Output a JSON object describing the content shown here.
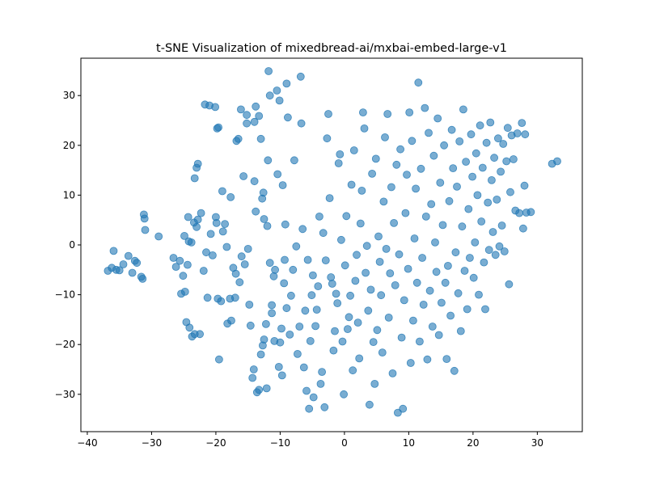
{
  "chart_data": {
    "type": "scatter",
    "title": "t-SNE Visualization of mixedbread-ai/mxbai-embed-large-v1",
    "xlabel": "",
    "ylabel": "",
    "xlim": [
      -41,
      37
    ],
    "ylim": [
      -37.5,
      37.5
    ],
    "xticks": [
      -40,
      -30,
      -20,
      -10,
      0,
      10,
      20,
      30
    ],
    "yticks": [
      -30,
      -20,
      -10,
      0,
      10,
      20,
      30
    ],
    "grid": false,
    "marker_color": "#1f77b4",
    "marker_alpha": 0.6,
    "points": [
      [
        -36.8,
        -5.2
      ],
      [
        -36.2,
        -4.6
      ],
      [
        -35.9,
        -1.2
      ],
      [
        -35.5,
        -5.0
      ],
      [
        -35.0,
        -5.1
      ],
      [
        -34.4,
        -3.9
      ],
      [
        -33.6,
        -2.2
      ],
      [
        -33.0,
        -5.6
      ],
      [
        -32.6,
        -3.2
      ],
      [
        -32.3,
        -3.6
      ],
      [
        -31.6,
        -6.4
      ],
      [
        -31.4,
        -6.8
      ],
      [
        -31.2,
        6.1
      ],
      [
        -31.1,
        5.3
      ],
      [
        -31.0,
        3.0
      ],
      [
        -28.9,
        1.7
      ],
      [
        -26.6,
        -2.6
      ],
      [
        -26.2,
        -4.4
      ],
      [
        -25.6,
        -3.2
      ],
      [
        -25.4,
        -9.8
      ],
      [
        -25.1,
        -6.2
      ],
      [
        -24.9,
        1.8
      ],
      [
        -24.8,
        -9.4
      ],
      [
        -24.4,
        -4.0
      ],
      [
        -24.2,
        0.7
      ],
      [
        -23.8,
        0.5
      ],
      [
        -24.6,
        -15.5
      ],
      [
        -24.1,
        -16.6
      ],
      [
        -23.7,
        -18.4
      ],
      [
        -23.3,
        -17.9
      ],
      [
        -22.5,
        -17.9
      ],
      [
        -24.3,
        5.6
      ],
      [
        -23.4,
        4.5
      ],
      [
        -23.0,
        3.6
      ],
      [
        -22.8,
        5.1
      ],
      [
        -22.3,
        6.4
      ],
      [
        -21.9,
        -5.2
      ],
      [
        -21.5,
        -1.5
      ],
      [
        -21.3,
        -10.6
      ],
      [
        -20.8,
        2.2
      ],
      [
        -20.5,
        -2.1
      ],
      [
        -19.9,
        4.4
      ],
      [
        -19.7,
        -10.8
      ],
      [
        -19.5,
        -23.0
      ],
      [
        -19.2,
        -11.3
      ],
      [
        -23.0,
        15.5
      ],
      [
        -22.8,
        16.3
      ],
      [
        -23.3,
        13.4
      ],
      [
        -21.7,
        28.2
      ],
      [
        -21.0,
        28.0
      ],
      [
        -20.1,
        27.7
      ],
      [
        -19.6,
        23.6
      ],
      [
        -19.8,
        23.4
      ],
      [
        -20.0,
        5.6
      ],
      [
        -19.0,
        10.8
      ],
      [
        -18.6,
        4.2
      ],
      [
        -18.9,
        2.7
      ],
      [
        -18.3,
        -0.4
      ],
      [
        -17.7,
        9.6
      ],
      [
        -17.8,
        -10.8
      ],
      [
        -17.3,
        -4.6
      ],
      [
        -17.0,
        -10.6
      ],
      [
        -16.9,
        -5.8
      ],
      [
        -16.8,
        20.9
      ],
      [
        -16.5,
        21.3
      ],
      [
        -16.1,
        27.2
      ],
      [
        -16.3,
        -7.5
      ],
      [
        -18.2,
        -15.8
      ],
      [
        -17.6,
        -15.2
      ],
      [
        -16.0,
        -2.3
      ],
      [
        -15.7,
        13.8
      ],
      [
        -15.5,
        -3.9
      ],
      [
        -15.2,
        26.1
      ],
      [
        -15.0,
        -0.8
      ],
      [
        -14.8,
        -12.0
      ],
      [
        -14.6,
        -16.2
      ],
      [
        -14.3,
        -26.7
      ],
      [
        -14.1,
        -25.0
      ],
      [
        -14.0,
        12.8
      ],
      [
        -13.8,
        27.8
      ],
      [
        -13.6,
        -29.6
      ],
      [
        -13.3,
        -29.1
      ],
      [
        -13.0,
        -22.0
      ],
      [
        -12.7,
        -20.2
      ],
      [
        -12.5,
        -19.0
      ],
      [
        -12.2,
        -15.9
      ],
      [
        -11.9,
        17.0
      ],
      [
        -15.2,
        24.4
      ],
      [
        -14.0,
        24.7
      ],
      [
        -13.8,
        6.7
      ],
      [
        -13.3,
        25.9
      ],
      [
        -13.0,
        21.3
      ],
      [
        -12.6,
        10.5
      ],
      [
        -12.1,
        -28.8
      ],
      [
        -11.8,
        34.9
      ],
      [
        -11.6,
        30.0
      ],
      [
        -11.3,
        -12.1
      ],
      [
        -11.0,
        -6.3
      ],
      [
        -10.8,
        -5.0
      ],
      [
        -10.5,
        31.0
      ],
      [
        -10.2,
        -24.5
      ],
      [
        -10.0,
        -19.6
      ],
      [
        -9.8,
        -16.8
      ],
      [
        -9.6,
        12.0
      ],
      [
        -9.4,
        -7.7
      ],
      [
        -9.2,
        4.1
      ],
      [
        -9.0,
        32.4
      ],
      [
        -12.8,
        9.3
      ],
      [
        -12.5,
        5.2
      ],
      [
        -12.0,
        3.8
      ],
      [
        -11.6,
        -3.6
      ],
      [
        -11.3,
        -13.7
      ],
      [
        -10.9,
        -19.3
      ],
      [
        -10.4,
        14.2
      ],
      [
        -10.1,
        29.0
      ],
      [
        -9.7,
        -26.2
      ],
      [
        -9.3,
        -3.0
      ],
      [
        -9.0,
        -12.7
      ],
      [
        -8.8,
        25.6
      ],
      [
        -8.5,
        -18.0
      ],
      [
        -8.3,
        -10.2
      ],
      [
        -8.0,
        -5.0
      ],
      [
        -7.8,
        17.0
      ],
      [
        -7.5,
        -0.3
      ],
      [
        -7.3,
        -21.9
      ],
      [
        -7.0,
        -16.4
      ],
      [
        -6.8,
        33.8
      ],
      [
        -6.7,
        24.4
      ],
      [
        -6.5,
        3.2
      ],
      [
        -6.3,
        -24.6
      ],
      [
        -6.1,
        -13.2
      ],
      [
        -5.9,
        -29.3
      ],
      [
        -5.7,
        -3.0
      ],
      [
        -5.5,
        -32.9
      ],
      [
        -5.3,
        -19.3
      ],
      [
        -5.1,
        -10.1
      ],
      [
        -4.9,
        -6.1
      ],
      [
        -4.8,
        -30.6
      ],
      [
        -4.5,
        -16.3
      ],
      [
        -4.3,
        -13.0
      ],
      [
        -4.1,
        -8.3
      ],
      [
        -3.9,
        5.7
      ],
      [
        -3.7,
        -27.9
      ],
      [
        -3.5,
        -25.5
      ],
      [
        -3.3,
        2.4
      ],
      [
        -3.1,
        -32.6
      ],
      [
        -2.9,
        -3.1
      ],
      [
        -2.7,
        21.4
      ],
      [
        -2.5,
        26.3
      ],
      [
        -2.3,
        9.4
      ],
      [
        -2.1,
        -6.5
      ],
      [
        -1.9,
        -7.8
      ],
      [
        -1.7,
        -21.2
      ],
      [
        -1.5,
        -17.3
      ],
      [
        -1.3,
        -9.8
      ],
      [
        -1.1,
        -11.7
      ],
      [
        -0.9,
        16.4
      ],
      [
        -0.7,
        18.2
      ],
      [
        -0.5,
        1.0
      ],
      [
        -0.3,
        -19.4
      ],
      [
        -0.1,
        -30.0
      ],
      [
        0.1,
        -4.1
      ],
      [
        0.3,
        5.8
      ],
      [
        0.5,
        -16.9
      ],
      [
        0.7,
        -14.5
      ],
      [
        0.9,
        -10.2
      ],
      [
        1.1,
        12.1
      ],
      [
        1.3,
        -25.2
      ],
      [
        1.5,
        19.0
      ],
      [
        1.7,
        -7.2
      ],
      [
        1.9,
        -2.0
      ],
      [
        2.1,
        -15.6
      ],
      [
        2.3,
        -22.8
      ],
      [
        2.5,
        4.3
      ],
      [
        2.7,
        10.9
      ],
      [
        2.9,
        26.6
      ],
      [
        3.1,
        23.4
      ],
      [
        3.3,
        -5.6
      ],
      [
        3.5,
        -0.2
      ],
      [
        3.7,
        -13.2
      ],
      [
        3.9,
        -32.1
      ],
      [
        4.1,
        -9.0
      ],
      [
        4.3,
        14.3
      ],
      [
        4.5,
        -19.5
      ],
      [
        4.7,
        -27.9
      ],
      [
        4.9,
        17.3
      ],
      [
        5.1,
        -17.1
      ],
      [
        5.3,
        1.7
      ],
      [
        5.5,
        -3.4
      ],
      [
        5.7,
        -10.1
      ],
      [
        5.9,
        -21.6
      ],
      [
        6.1,
        8.7
      ],
      [
        6.3,
        21.6
      ],
      [
        6.5,
        -0.8
      ],
      [
        6.7,
        26.3
      ],
      [
        6.9,
        -14.6
      ],
      [
        7.1,
        -5.7
      ],
      [
        7.3,
        11.6
      ],
      [
        7.5,
        -25.8
      ],
      [
        7.7,
        4.4
      ],
      [
        7.9,
        -8.1
      ],
      [
        8.1,
        16.1
      ],
      [
        8.3,
        -33.7
      ],
      [
        8.5,
        -1.9
      ],
      [
        8.7,
        19.2
      ],
      [
        8.9,
        -18.6
      ],
      [
        9.1,
        -32.9
      ],
      [
        9.3,
        -11.1
      ],
      [
        9.5,
        6.4
      ],
      [
        9.7,
        14.1
      ],
      [
        9.9,
        -4.8
      ],
      [
        10.1,
        26.6
      ],
      [
        10.3,
        -23.7
      ],
      [
        10.5,
        20.9
      ],
      [
        10.7,
        -15.2
      ],
      [
        10.9,
        1.3
      ],
      [
        11.1,
        11.3
      ],
      [
        11.3,
        -7.6
      ],
      [
        11.5,
        32.6
      ],
      [
        11.7,
        -19.4
      ],
      [
        11.9,
        15.3
      ],
      [
        12.1,
        -2.6
      ],
      [
        12.3,
        -12.0
      ],
      [
        12.5,
        27.5
      ],
      [
        12.7,
        5.7
      ],
      [
        12.9,
        -23.0
      ],
      [
        13.1,
        22.5
      ],
      [
        13.3,
        -9.2
      ],
      [
        13.5,
        8.2
      ],
      [
        13.7,
        -16.4
      ],
      [
        13.9,
        17.9
      ],
      [
        14.1,
        0.5
      ],
      [
        14.3,
        -5.4
      ],
      [
        14.5,
        25.4
      ],
      [
        14.7,
        -18.1
      ],
      [
        14.9,
        12.5
      ],
      [
        15.1,
        -11.6
      ],
      [
        15.3,
        4.0
      ],
      [
        15.5,
        20.0
      ],
      [
        15.7,
        -7.6
      ],
      [
        15.9,
        -22.9
      ],
      [
        16.1,
        -4.2
      ],
      [
        16.3,
        8.8
      ],
      [
        16.5,
        -14.2
      ],
      [
        16.7,
        23.1
      ],
      [
        16.9,
        15.4
      ],
      [
        17.1,
        -25.3
      ],
      [
        17.3,
        -1.5
      ],
      [
        17.5,
        11.7
      ],
      [
        17.7,
        -9.7
      ],
      [
        17.9,
        20.8
      ],
      [
        18.1,
        -17.3
      ],
      [
        18.3,
        3.7
      ],
      [
        18.5,
        27.2
      ],
      [
        18.7,
        -5.2
      ],
      [
        18.9,
        16.7
      ],
      [
        19.1,
        -12.9
      ],
      [
        19.3,
        7.2
      ],
      [
        19.5,
        -2.6
      ],
      [
        19.7,
        22.2
      ],
      [
        19.9,
        13.7
      ],
      [
        20.1,
        -6.6
      ],
      [
        20.3,
        0.5
      ],
      [
        20.5,
        18.4
      ],
      [
        20.7,
        10.0
      ],
      [
        20.9,
        -10.0
      ],
      [
        21.1,
        24.0
      ],
      [
        21.3,
        4.7
      ],
      [
        21.5,
        15.5
      ],
      [
        21.7,
        -3.5
      ],
      [
        21.9,
        -12.9
      ],
      [
        22.1,
        20.5
      ],
      [
        22.3,
        8.5
      ],
      [
        22.5,
        -1.0
      ],
      [
        22.7,
        24.6
      ],
      [
        22.9,
        13.0
      ],
      [
        23.1,
        2.6
      ],
      [
        23.3,
        17.5
      ],
      [
        23.5,
        -2.0
      ],
      [
        23.7,
        9.1
      ],
      [
        23.9,
        21.4
      ],
      [
        24.1,
        -0.3
      ],
      [
        24.3,
        14.7
      ],
      [
        24.5,
        3.9
      ],
      [
        24.7,
        20.3
      ],
      [
        24.9,
        -1.3
      ],
      [
        25.2,
        16.8
      ],
      [
        25.4,
        23.5
      ],
      [
        25.6,
        -7.9
      ],
      [
        25.8,
        10.6
      ],
      [
        26.0,
        22.0
      ],
      [
        26.3,
        17.2
      ],
      [
        26.6,
        6.9
      ],
      [
        26.9,
        22.4
      ],
      [
        27.2,
        6.4
      ],
      [
        27.6,
        24.5
      ],
      [
        27.8,
        3.3
      ],
      [
        28.0,
        11.9
      ],
      [
        28.3,
        6.5
      ],
      [
        28.1,
        22.2
      ],
      [
        29.0,
        6.6
      ],
      [
        32.3,
        16.3
      ],
      [
        33.1,
        16.8
      ]
    ]
  }
}
